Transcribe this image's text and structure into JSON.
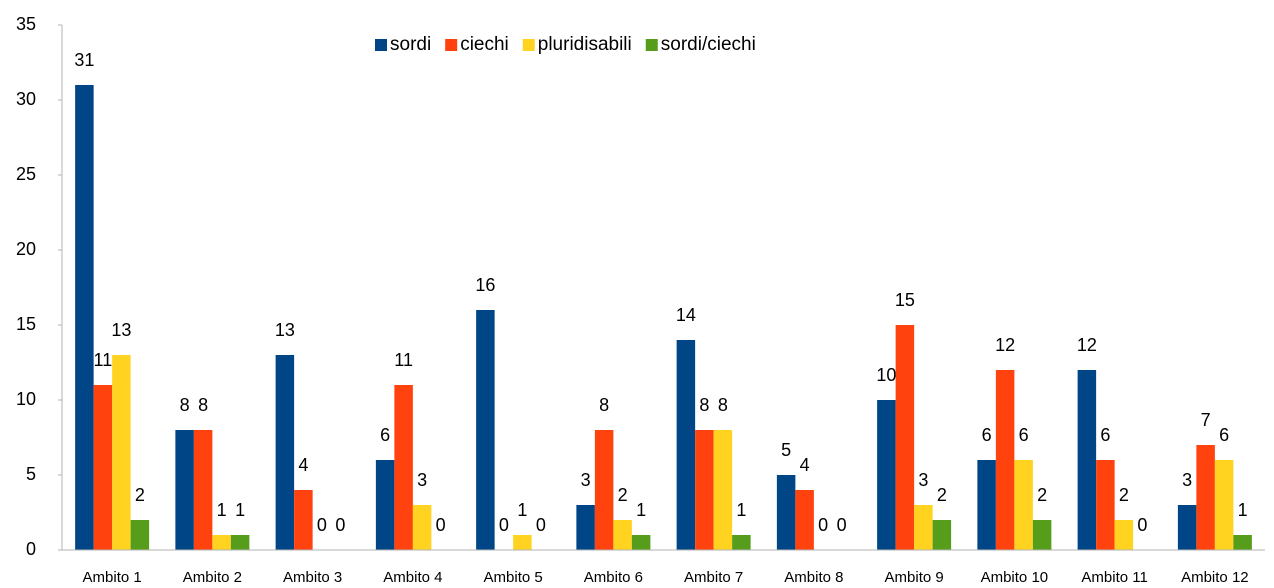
{
  "chart_data": {
    "type": "bar",
    "categories": [
      "Ambito 1",
      "Ambito 2",
      "Ambito 3",
      "Ambito 4",
      "Ambito 5",
      "Ambito 6",
      "Ambito 7",
      "Ambito 8",
      "Ambito 9",
      "Ambito 10",
      "Ambito 11",
      "Ambito 12"
    ],
    "series": [
      {
        "name": "sordi",
        "color": "#004586",
        "values": [
          31,
          8,
          13,
          6,
          16,
          3,
          14,
          5,
          10,
          6,
          12,
          3
        ]
      },
      {
        "name": "ciechi",
        "color": "#ff420e",
        "values": [
          11,
          8,
          4,
          11,
          0,
          8,
          8,
          4,
          15,
          12,
          6,
          7
        ]
      },
      {
        "name": "pluridisabili",
        "color": "#ffd320",
        "values": [
          13,
          1,
          0,
          3,
          1,
          2,
          8,
          0,
          3,
          6,
          2,
          6
        ]
      },
      {
        "name": "sordi/ciechi",
        "color": "#579d1c",
        "values": [
          2,
          1,
          0,
          0,
          0,
          1,
          1,
          0,
          2,
          2,
          0,
          1
        ]
      }
    ],
    "ylim": [
      0,
      35
    ],
    "yticks": [
      0,
      5,
      10,
      15,
      20,
      25,
      30,
      35
    ],
    "grid": false,
    "legend": "top"
  }
}
